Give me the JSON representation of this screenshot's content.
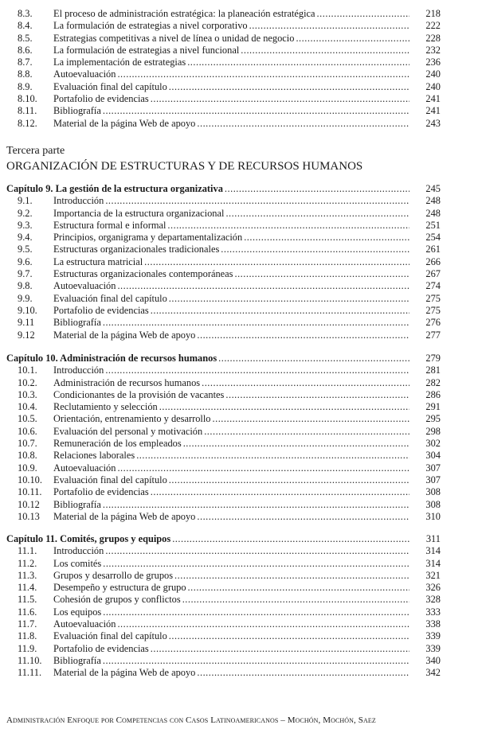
{
  "sections": [
    {
      "chapter": null,
      "items": [
        {
          "num": "8.3.",
          "title": "El proceso de administración estratégica: la planeación estratégica",
          "page": "218"
        },
        {
          "num": "8.4.",
          "title": "La formulación de estrategias a nivel corporativo",
          "page": "222"
        },
        {
          "num": "8.5.",
          "title": "Estrategias competitivas a nivel de línea o unidad de negocio",
          "page": "228"
        },
        {
          "num": "8.6.",
          "title": "La formulación de estrategias a nivel funcional",
          "page": "232"
        },
        {
          "num": "8.7.",
          "title": "La implementación de estrategias",
          "page": "236"
        },
        {
          "num": "8.8.",
          "title": "Autoevaluación",
          "page": "240"
        },
        {
          "num": "8.9.",
          "title": "Evaluación final del capítulo",
          "page": "240"
        },
        {
          "num": "8.10.",
          "title": "Portafolio de evidencias",
          "page": "241"
        },
        {
          "num": "8.11.",
          "title": "Bibliografía",
          "page": "241"
        },
        {
          "num": "8.12.",
          "title": "Material de la página Web de apoyo",
          "page": "243"
        }
      ]
    },
    {
      "chapter": {
        "title": "Capítulo 9.  La gestión de la estructura organizativa",
        "page": "245"
      },
      "items": [
        {
          "num": "9.1.",
          "title": "Introducción",
          "page": "248"
        },
        {
          "num": "9.2.",
          "title": "Importancia de la estructura organizacional",
          "page": "248"
        },
        {
          "num": "9.3.",
          "title": "Estructura formal e informal",
          "page": "251"
        },
        {
          "num": "9.4.",
          "title": "Principios, organigrama y departamentalización",
          "page": "254"
        },
        {
          "num": "9.5.",
          "title": "Estructuras organizacionales tradicionales",
          "page": "261"
        },
        {
          "num": "9.6.",
          "title": "La estructura matricial",
          "page": "266"
        },
        {
          "num": "9.7.",
          "title": "Estructuras organizacionales contemporáneas",
          "page": "267"
        },
        {
          "num": "9.8.",
          "title": "Autoevaluación",
          "page": "274"
        },
        {
          "num": "9.9.",
          "title": "Evaluación final del capítulo",
          "page": "275"
        },
        {
          "num": "9.10.",
          "title": "Portafolio de evidencias",
          "page": "275"
        },
        {
          "num": "9.11",
          "title": "Bibliografía",
          "page": "276"
        },
        {
          "num": "9.12",
          "title": "Material de la página Web de apoyo",
          "page": "277"
        }
      ]
    },
    {
      "chapter": {
        "title": "Capítulo 10.  Administración de recursos humanos",
        "page": "279"
      },
      "items": [
        {
          "num": "10.1.",
          "title": "Introducción",
          "page": "281"
        },
        {
          "num": "10.2.",
          "title": "Administración de recursos humanos",
          "page": "282"
        },
        {
          "num": "10.3.",
          "title": "Condicionantes de la provisión de vacantes",
          "page": "286"
        },
        {
          "num": "10.4.",
          "title": "Reclutamiento y selección",
          "page": "291"
        },
        {
          "num": "10.5.",
          "title": "Orientación, entrenamiento y desarrollo",
          "page": "295"
        },
        {
          "num": "10.6.",
          "title": "Evaluación del personal y motivación",
          "page": "298"
        },
        {
          "num": "10.7.",
          "title": "Remuneración de los empleados",
          "page": "302"
        },
        {
          "num": "10.8.",
          "title": "Relaciones laborales",
          "page": "304"
        },
        {
          "num": "10.9.",
          "title": "Autoevaluación",
          "page": "307"
        },
        {
          "num": "10.10.",
          "title": "Evaluación final del capítulo",
          "page": "307"
        },
        {
          "num": "10.11.",
          "title": "Portafolio de evidencias",
          "page": "308"
        },
        {
          "num": "10.12",
          "title": "Bibliografía",
          "page": "308"
        },
        {
          "num": "10.13",
          "title": "Material de la página Web de apoyo",
          "page": "310"
        }
      ]
    },
    {
      "chapter": {
        "title": "Capítulo 11.  Comités, grupos y equipos",
        "page": "311"
      },
      "items": [
        {
          "num": "11.1.",
          "title": "Introducción",
          "page": "314"
        },
        {
          "num": "11.2.",
          "title": "Los comités",
          "page": "314"
        },
        {
          "num": "11.3.",
          "title": "Grupos y desarrollo de grupos",
          "page": "321"
        },
        {
          "num": "11.4.",
          "title": "Desempeño y estructura de grupo",
          "page": "326"
        },
        {
          "num": "11.5.",
          "title": "Cohesión de grupos y conflictos",
          "page": "328"
        },
        {
          "num": "11.6.",
          "title": "Los equipos",
          "page": "333"
        },
        {
          "num": "11.7.",
          "title": "Autoevaluación",
          "page": "338"
        },
        {
          "num": "11.8.",
          "title": "Evaluación final del capítulo",
          "page": "339"
        },
        {
          "num": "11.9.",
          "title": "Portafolio de evidencias",
          "page": "339"
        },
        {
          "num": "11.10.",
          "title": "Bibliografía",
          "page": "340"
        },
        {
          "num": "11.11.",
          "title": "Material de la página Web de apoyo",
          "page": "342"
        }
      ]
    }
  ],
  "part": {
    "label": "Tercera parte",
    "title": "ORGANIZACIÓN DE ESTRUCTURAS Y DE RECURSOS HUMANOS"
  },
  "footer": "Administración Enfoque por Competencias con Casos Latinoamericanos – Mochón, Mochón, Saez"
}
